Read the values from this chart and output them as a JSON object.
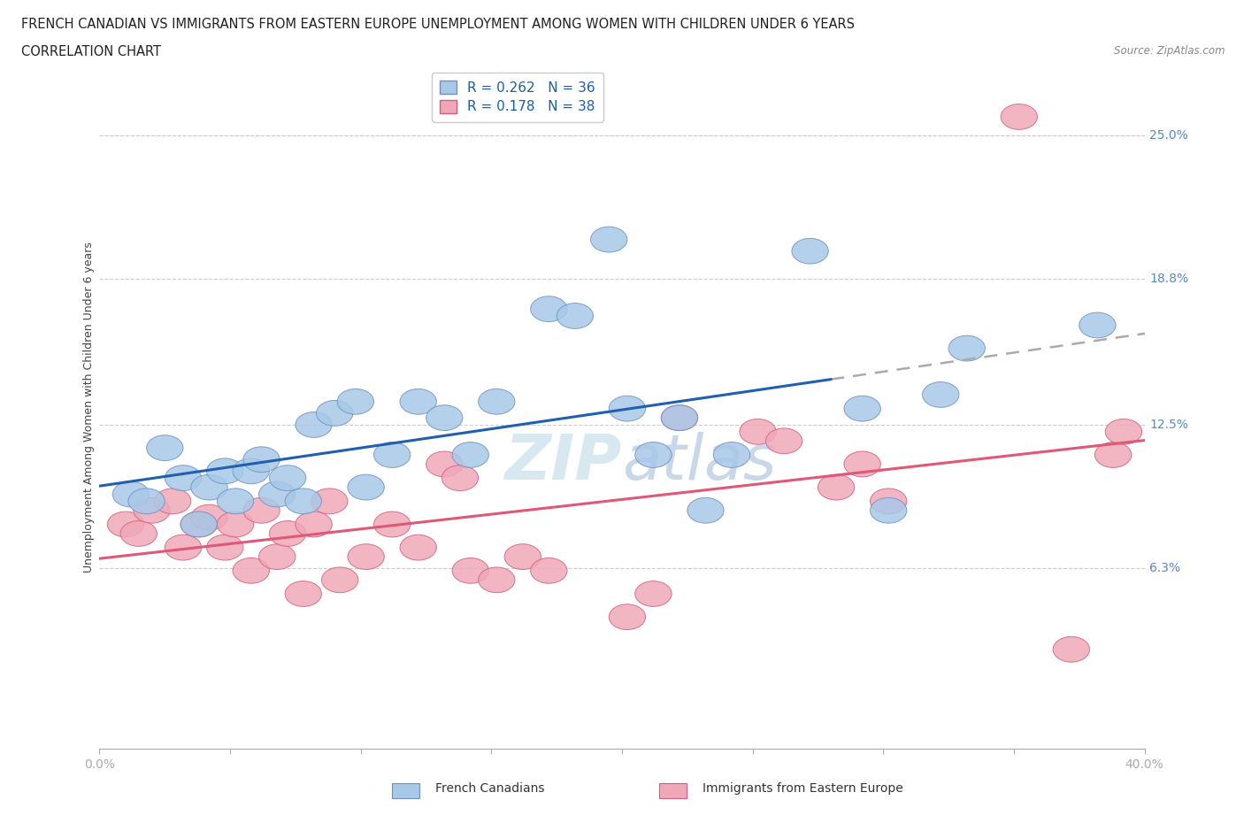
{
  "title_line1": "FRENCH CANADIAN VS IMMIGRANTS FROM EASTERN EUROPE UNEMPLOYMENT AMONG WOMEN WITH CHILDREN UNDER 6 YEARS",
  "title_line2": "CORRELATION CHART",
  "source": "Source: ZipAtlas.com",
  "ylabel": "Unemployment Among Women with Children Under 6 years",
  "ytick_vals": [
    6.3,
    12.5,
    18.8,
    25.0
  ],
  "ytick_labels": [
    "6.3%",
    "12.5%",
    "18.8%",
    "25.0%"
  ],
  "xlim": [
    0.0,
    40.0
  ],
  "ylim": [
    -1.5,
    28.0
  ],
  "legend_blue_R": "0.262",
  "legend_blue_N": "36",
  "legend_pink_R": "0.178",
  "legend_pink_N": "38",
  "legend_label_blue": "French Canadians",
  "legend_label_pink": "Immigrants from Eastern Europe",
  "blue_color": "#A8C8E8",
  "pink_color": "#F0A8B8",
  "blue_edge_color": "#7090C0",
  "pink_edge_color": "#D06080",
  "blue_line_color": "#2060B0",
  "pink_line_color": "#E05878",
  "dash_line_color": "#AAAAAA",
  "watermark_color": "#D8E8F0",
  "blue_scatter": [
    [
      1.2,
      9.5
    ],
    [
      1.8,
      9.2
    ],
    [
      2.5,
      11.5
    ],
    [
      3.2,
      10.2
    ],
    [
      3.8,
      8.2
    ],
    [
      4.2,
      9.8
    ],
    [
      4.8,
      10.5
    ],
    [
      5.2,
      9.2
    ],
    [
      5.8,
      10.5
    ],
    [
      6.2,
      11.0
    ],
    [
      6.8,
      9.5
    ],
    [
      7.2,
      10.2
    ],
    [
      7.8,
      9.2
    ],
    [
      8.2,
      12.5
    ],
    [
      9.0,
      13.0
    ],
    [
      9.8,
      13.5
    ],
    [
      10.2,
      9.8
    ],
    [
      11.2,
      11.2
    ],
    [
      12.2,
      13.5
    ],
    [
      13.2,
      12.8
    ],
    [
      14.2,
      11.2
    ],
    [
      15.2,
      13.5
    ],
    [
      17.2,
      17.5
    ],
    [
      18.2,
      17.2
    ],
    [
      19.5,
      20.5
    ],
    [
      20.2,
      13.2
    ],
    [
      21.2,
      11.2
    ],
    [
      22.2,
      12.8
    ],
    [
      23.2,
      8.8
    ],
    [
      24.2,
      11.2
    ],
    [
      27.2,
      20.0
    ],
    [
      29.2,
      13.2
    ],
    [
      30.2,
      8.8
    ],
    [
      32.2,
      13.8
    ],
    [
      33.2,
      15.8
    ],
    [
      38.2,
      16.8
    ]
  ],
  "pink_scatter": [
    [
      1.0,
      8.2
    ],
    [
      1.5,
      7.8
    ],
    [
      2.0,
      8.8
    ],
    [
      2.8,
      9.2
    ],
    [
      3.2,
      7.2
    ],
    [
      3.8,
      8.2
    ],
    [
      4.2,
      8.5
    ],
    [
      4.8,
      7.2
    ],
    [
      5.2,
      8.2
    ],
    [
      5.8,
      6.2
    ],
    [
      6.2,
      8.8
    ],
    [
      6.8,
      6.8
    ],
    [
      7.2,
      7.8
    ],
    [
      7.8,
      5.2
    ],
    [
      8.2,
      8.2
    ],
    [
      8.8,
      9.2
    ],
    [
      9.2,
      5.8
    ],
    [
      10.2,
      6.8
    ],
    [
      11.2,
      8.2
    ],
    [
      12.2,
      7.2
    ],
    [
      13.2,
      10.8
    ],
    [
      13.8,
      10.2
    ],
    [
      14.2,
      6.2
    ],
    [
      15.2,
      5.8
    ],
    [
      16.2,
      6.8
    ],
    [
      17.2,
      6.2
    ],
    [
      20.2,
      4.2
    ],
    [
      21.2,
      5.2
    ],
    [
      22.2,
      12.8
    ],
    [
      25.2,
      12.2
    ],
    [
      26.2,
      11.8
    ],
    [
      28.2,
      9.8
    ],
    [
      29.2,
      10.8
    ],
    [
      30.2,
      9.2
    ],
    [
      35.2,
      25.8
    ],
    [
      37.2,
      2.8
    ],
    [
      38.8,
      11.2
    ],
    [
      39.2,
      12.2
    ]
  ],
  "blue_line_solid_end": 28.0,
  "blue_line_dash_start": 28.0,
  "blue_line_dash_end": 40.0
}
